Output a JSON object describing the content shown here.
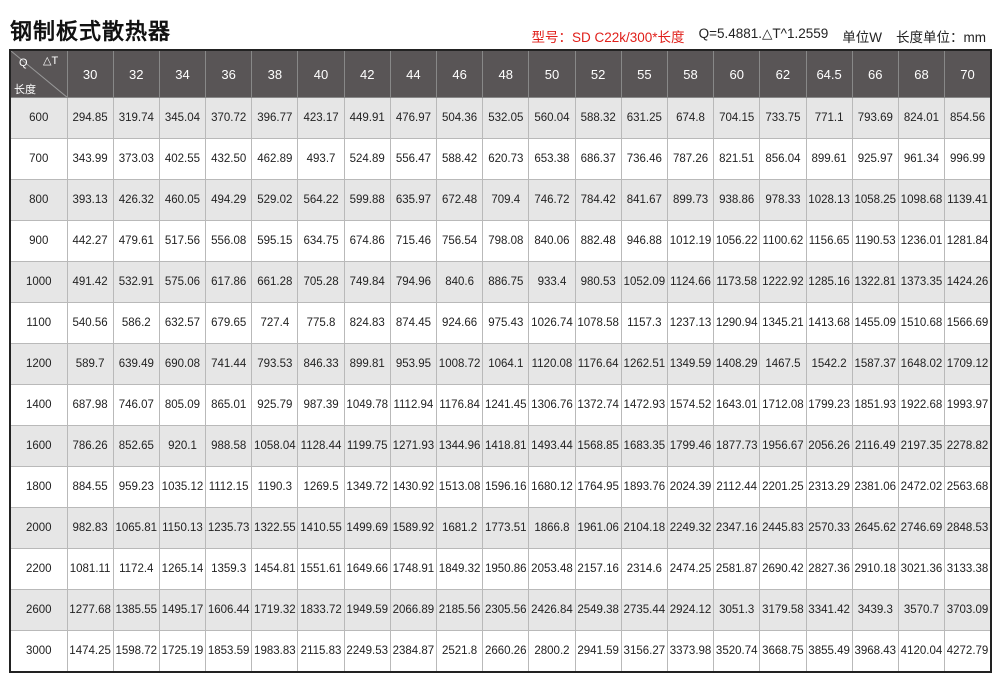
{
  "title": "钢制板式散热器",
  "meta": {
    "model": "型号：SD  C22k/300*长度",
    "formula": "Q=5.4881.△T^1.2559",
    "unit": "单位W",
    "length_unit": "长度单位：mm"
  },
  "colors": {
    "header_bg": "#595556",
    "model_text": "#e0201b",
    "row_alt": "#e6e6e6"
  },
  "table": {
    "corner": {
      "q": "Q",
      "delta_t": "△T",
      "length": "长度"
    },
    "columns": [
      "30",
      "32",
      "34",
      "36",
      "38",
      "40",
      "42",
      "44",
      "46",
      "48",
      "50",
      "52",
      "55",
      "58",
      "60",
      "62",
      "64.5",
      "66",
      "68",
      "70"
    ],
    "rows": [
      {
        "length": "600",
        "values": [
          "294.85",
          "319.74",
          "345.04",
          "370.72",
          "396.77",
          "423.17",
          "449.91",
          "476.97",
          "504.36",
          "532.05",
          "560.04",
          "588.32",
          "631.25",
          "674.8",
          "704.15",
          "733.75",
          "771.1",
          "793.69",
          "824.01",
          "854.56"
        ]
      },
      {
        "length": "700",
        "values": [
          "343.99",
          "373.03",
          "402.55",
          "432.50",
          "462.89",
          "493.7",
          "524.89",
          "556.47",
          "588.42",
          "620.73",
          "653.38",
          "686.37",
          "736.46",
          "787.26",
          "821.51",
          "856.04",
          "899.61",
          "925.97",
          "961.34",
          "996.99"
        ]
      },
      {
        "length": "800",
        "values": [
          "393.13",
          "426.32",
          "460.05",
          "494.29",
          "529.02",
          "564.22",
          "599.88",
          "635.97",
          "672.48",
          "709.4",
          "746.72",
          "784.42",
          "841.67",
          "899.73",
          "938.86",
          "978.33",
          "1028.13",
          "1058.25",
          "1098.68",
          "1139.41"
        ]
      },
      {
        "length": "900",
        "values": [
          "442.27",
          "479.61",
          "517.56",
          "556.08",
          "595.15",
          "634.75",
          "674.86",
          "715.46",
          "756.54",
          "798.08",
          "840.06",
          "882.48",
          "946.88",
          "1012.19",
          "1056.22",
          "1100.62",
          "1156.65",
          "1190.53",
          "1236.01",
          "1281.84"
        ]
      },
      {
        "length": "1000",
        "values": [
          "491.42",
          "532.91",
          "575.06",
          "617.86",
          "661.28",
          "705.28",
          "749.84",
          "794.96",
          "840.6",
          "886.75",
          "933.4",
          "980.53",
          "1052.09",
          "1124.66",
          "1173.58",
          "1222.92",
          "1285.16",
          "1322.81",
          "1373.35",
          "1424.26"
        ]
      },
      {
        "length": "1100",
        "values": [
          "540.56",
          "586.2",
          "632.57",
          "679.65",
          "727.4",
          "775.8",
          "824.83",
          "874.45",
          "924.66",
          "975.43",
          "1026.74",
          "1078.58",
          "1157.3",
          "1237.13",
          "1290.94",
          "1345.21",
          "1413.68",
          "1455.09",
          "1510.68",
          "1566.69"
        ]
      },
      {
        "length": "1200",
        "values": [
          "589.7",
          "639.49",
          "690.08",
          "741.44",
          "793.53",
          "846.33",
          "899.81",
          "953.95",
          "1008.72",
          "1064.1",
          "1120.08",
          "1176.64",
          "1262.51",
          "1349.59",
          "1408.29",
          "1467.5",
          "1542.2",
          "1587.37",
          "1648.02",
          "1709.12"
        ]
      },
      {
        "length": "1400",
        "values": [
          "687.98",
          "746.07",
          "805.09",
          "865.01",
          "925.79",
          "987.39",
          "1049.78",
          "1112.94",
          "1176.84",
          "1241.45",
          "1306.76",
          "1372.74",
          "1472.93",
          "1574.52",
          "1643.01",
          "1712.08",
          "1799.23",
          "1851.93",
          "1922.68",
          "1993.97"
        ]
      },
      {
        "length": "1600",
        "values": [
          "786.26",
          "852.65",
          "920.1",
          "988.58",
          "1058.04",
          "1128.44",
          "1199.75",
          "1271.93",
          "1344.96",
          "1418.81",
          "1493.44",
          "1568.85",
          "1683.35",
          "1799.46",
          "1877.73",
          "1956.67",
          "2056.26",
          "2116.49",
          "2197.35",
          "2278.82"
        ]
      },
      {
        "length": "1800",
        "values": [
          "884.55",
          "959.23",
          "1035.12",
          "1112.15",
          "1190.3",
          "1269.5",
          "1349.72",
          "1430.92",
          "1513.08",
          "1596.16",
          "1680.12",
          "1764.95",
          "1893.76",
          "2024.39",
          "2112.44",
          "2201.25",
          "2313.29",
          "2381.06",
          "2472.02",
          "2563.68"
        ]
      },
      {
        "length": "2000",
        "values": [
          "982.83",
          "1065.81",
          "1150.13",
          "1235.73",
          "1322.55",
          "1410.55",
          "1499.69",
          "1589.92",
          "1681.2",
          "1773.51",
          "1866.8",
          "1961.06",
          "2104.18",
          "2249.32",
          "2347.16",
          "2445.83",
          "2570.33",
          "2645.62",
          "2746.69",
          "2848.53"
        ]
      },
      {
        "length": "2200",
        "values": [
          "1081.11",
          "1172.4",
          "1265.14",
          "1359.3",
          "1454.81",
          "1551.61",
          "1649.66",
          "1748.91",
          "1849.32",
          "1950.86",
          "2053.48",
          "2157.16",
          "2314.6",
          "2474.25",
          "2581.87",
          "2690.42",
          "2827.36",
          "2910.18",
          "3021.36",
          "3133.38"
        ]
      },
      {
        "length": "2600",
        "values": [
          "1277.68",
          "1385.55",
          "1495.17",
          "1606.44",
          "1719.32",
          "1833.72",
          "1949.59",
          "2066.89",
          "2185.56",
          "2305.56",
          "2426.84",
          "2549.38",
          "2735.44",
          "2924.12",
          "3051.3",
          "3179.58",
          "3341.42",
          "3439.3",
          "3570.7",
          "3703.09"
        ]
      },
      {
        "length": "3000",
        "values": [
          "1474.25",
          "1598.72",
          "1725.19",
          "1853.59",
          "1983.83",
          "2115.83",
          "2249.53",
          "2384.87",
          "2521.8",
          "2660.26",
          "2800.2",
          "2941.59",
          "3156.27",
          "3373.98",
          "3520.74",
          "3668.75",
          "3855.49",
          "3968.43",
          "4120.04",
          "4272.79"
        ]
      }
    ]
  }
}
